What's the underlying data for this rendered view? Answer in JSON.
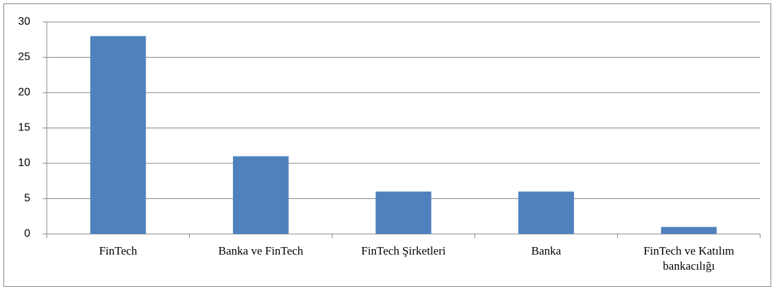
{
  "chart_data": {
    "type": "bar",
    "categories": [
      "FinTech",
      "Banka ve FinTech",
      "FinTech Şirketleri",
      "Banka",
      "FinTech ve Katılım bankacılığı"
    ],
    "values": [
      28,
      11,
      6,
      6,
      1
    ],
    "color": "#4f81bd",
    "ylim": [
      0,
      30
    ],
    "yticks": [
      0,
      5,
      10,
      15,
      20,
      25,
      30
    ],
    "grid": true
  }
}
